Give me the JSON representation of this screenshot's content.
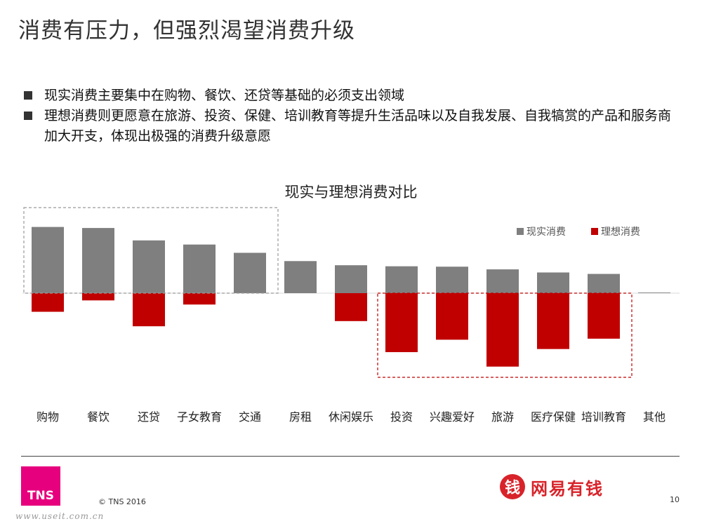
{
  "slide": {
    "title": "消费有压力，但强烈渴望消费升级",
    "bullets": [
      "现实消费主要集中在购物、餐饮、还贷等基础的必须支出领域",
      "理想消费则更愿意在旅游、投资、保健、培训教育等提升生活品味以及自我发展、自我犒赏的产品和服务商加大开支，体现出极强的消费升级意愿"
    ]
  },
  "chart_data": {
    "type": "bar",
    "title": "现实与理想消费对比",
    "categories": [
      "购物",
      "餐饮",
      "还贷",
      "子女教育",
      "交通",
      "房租",
      "休闲娱乐",
      "投资",
      "兴趣爱好",
      "旅游",
      "医疗保健",
      "培训教育",
      "其他"
    ],
    "series": [
      {
        "name": "现实消费",
        "color": "#7f7f7f",
        "values": [
          32,
          31.5,
          25.5,
          23.5,
          19.5,
          15.5,
          13.5,
          13,
          12.8,
          11.5,
          10,
          9.3,
          0.3
        ]
      },
      {
        "name": "理想消费",
        "color": "#c00000",
        "values": [
          -9,
          -3.5,
          -16,
          -5.5,
          0,
          0,
          -13.5,
          -28.5,
          -22.5,
          -35.5,
          -27,
          -22,
          0
        ]
      }
    ],
    "ylim": [
      -40,
      40
    ],
    "stacked_around_zero": true,
    "legend_position": "top-right",
    "highlight_boxes": [
      {
        "from_category": "购物",
        "to_category": "交通",
        "color": "#999999",
        "side": "positive"
      },
      {
        "from_category": "投资",
        "to_category": "培训教育",
        "color": "#c00000",
        "side": "negative"
      }
    ]
  },
  "footer": {
    "logo_text": "TNS",
    "copyright": "© TNS 2016",
    "brand_icon": "钱",
    "brand_name": "网易有钱",
    "page_number": "10",
    "watermark": "www.useit.com.cn"
  }
}
